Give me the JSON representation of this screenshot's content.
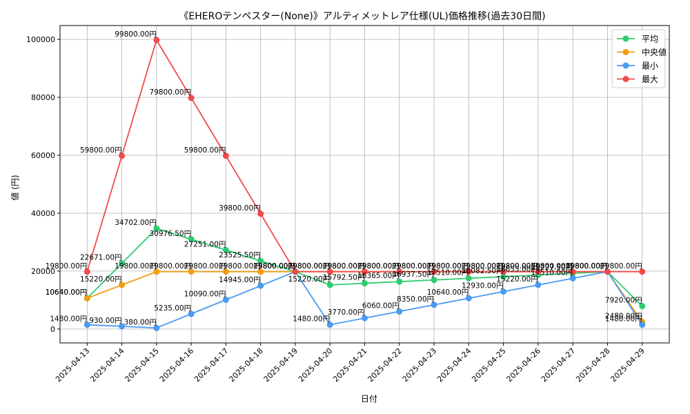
{
  "chart_data": {
    "type": "line",
    "title": "《EHEROテンペスター(None)》アルティメットレア仕様(UL)価格推移(過去30日間)",
    "xlabel": "日付",
    "ylabel": "値 (円)",
    "categories": [
      "2025-04-13",
      "2025-04-14",
      "2025-04-15",
      "2025-04-16",
      "2025-04-17",
      "2025-04-18",
      "2025-04-19",
      "2025-04-20",
      "2025-04-21",
      "2025-04-22",
      "2025-04-23",
      "2025-04-24",
      "2025-04-25",
      "2025-04-26",
      "2025-04-27",
      "2025-04-28",
      "2025-04-29"
    ],
    "ylim": [
      -4800,
      104800
    ],
    "yticks": [
      0,
      20000,
      40000,
      60000,
      80000,
      100000
    ],
    "ytick_labels": [
      "0",
      "20000",
      "40000",
      "60000",
      "80000",
      "100000"
    ],
    "grid": true,
    "legend_position": "top-right",
    "series": [
      {
        "name": "平均",
        "color": "#2ecc71",
        "values": [
          10640,
          22671,
          34702,
          30976.5,
          27251,
          23525.5,
          19800,
          15220,
          15792.5,
          16365,
          16937.5,
          17510,
          18082.5,
          18655,
          19227.5,
          19800,
          7920
        ],
        "labels": [
          "10640.00円",
          "22671.00円",
          "34702.00円",
          "30976.50円",
          "27251.00円",
          "23525.50円",
          "19800.00円",
          "15220.00円",
          "15792.50円",
          "16365.00円",
          "16937.50円",
          "17510.00円",
          "18082.50円",
          "18655.00円",
          "19227.50円",
          "19800.00円",
          "7920.00円"
        ]
      },
      {
        "name": "中央値",
        "color": "#f39c12",
        "values": [
          10640,
          15220,
          19800,
          19800,
          19800,
          19800,
          19800,
          19800,
          19800,
          19800,
          19800,
          19800,
          19800,
          19800,
          19800,
          19800,
          2480
        ],
        "labels": [
          "10640.00円",
          "15220.00円",
          "19800.00円",
          "19800.00円",
          "19800.00円",
          "19800.00円",
          "19800.00円",
          "19800.00円",
          "19800.00円",
          "19800.00円",
          "19800.00円",
          "19800.00円",
          "19800.00円",
          "19800.00円",
          "19800.00円",
          "19800.00円",
          "2480.00円"
        ]
      },
      {
        "name": "最小",
        "color": "#4a9af0",
        "values": [
          1480,
          930,
          380,
          5235,
          10090,
          14945,
          19800,
          1480,
          3770,
          6060,
          8350,
          10640,
          12930,
          15220,
          17510,
          19800,
          1480
        ],
        "labels": [
          "1480.00円",
          "930.00円",
          "380.00円",
          "5235.00円",
          "10090.00円",
          "14945.00円",
          "19800.00円",
          "1480.00円",
          "3770.00円",
          "6060.00円",
          "8350.00円",
          "10640.00円",
          "12930.00円",
          "15220.00円",
          "17510.00円",
          "19800.00円",
          "1480.00円"
        ]
      },
      {
        "name": "最大",
        "color": "#f04a4a",
        "values": [
          19800,
          59800,
          99800,
          79800,
          59800,
          39800,
          19800,
          19800,
          19800,
          19800,
          19800,
          19800,
          19800,
          19800,
          19800,
          19800,
          19800
        ],
        "labels": [
          "19800.00円",
          "59800.00円",
          "99800.00円",
          "79800.00円",
          "59800.00円",
          "39800.00円",
          "19800.00円",
          "19800.00円",
          "19800.00円",
          "19800.00円",
          "19800.00円",
          "19800.00円",
          "19800.00円",
          "19800.00円",
          "19800.00円",
          "19800.00円",
          "19800.00円"
        ]
      }
    ]
  }
}
